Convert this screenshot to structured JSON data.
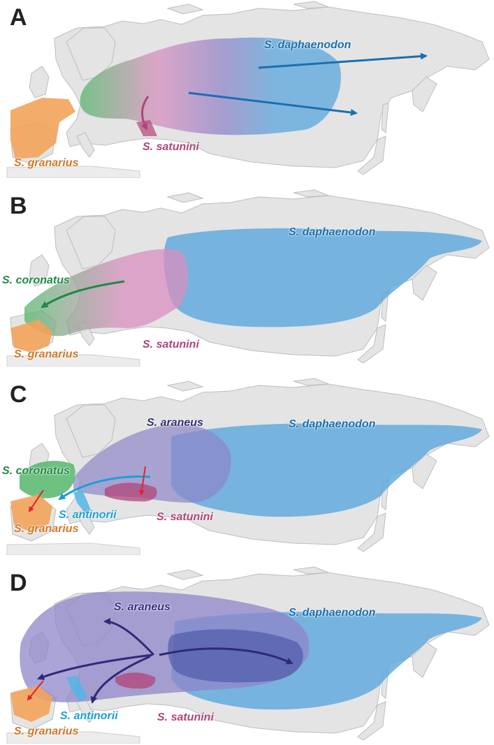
{
  "panels": [
    {
      "label": "A",
      "species": [
        {
          "name": "S. daphaenodon",
          "color": "#1a6fb0"
        },
        {
          "name": "S. satunini",
          "color": "#b2447a"
        },
        {
          "name": "S. granarius",
          "color": "#d07a2a"
        }
      ]
    },
    {
      "label": "B",
      "species": [
        {
          "name": "S. daphaenodon",
          "color": "#1a6fb0"
        },
        {
          "name": "S. coronatus",
          "color": "#1e8a46"
        },
        {
          "name": "S. satunini",
          "color": "#b2447a"
        },
        {
          "name": "S. granarius",
          "color": "#d07a2a"
        }
      ]
    },
    {
      "label": "C",
      "species": [
        {
          "name": "S. araneus",
          "color": "#34307a"
        },
        {
          "name": "S. daphaenodon",
          "color": "#1a6fb0"
        },
        {
          "name": "S. coronatus",
          "color": "#1e8a46"
        },
        {
          "name": "S. antinorii",
          "color": "#1aa0d8"
        },
        {
          "name": "S. satunini",
          "color": "#b2447a"
        },
        {
          "name": "S. granarius",
          "color": "#d07a2a"
        }
      ]
    },
    {
      "label": "D",
      "species": [
        {
          "name": "S. araneus",
          "color": "#34307a"
        },
        {
          "name": "S. daphaenodon",
          "color": "#1a6fb0"
        },
        {
          "name": "S. antinorii",
          "color": "#1aa0d8"
        },
        {
          "name": "S. satunini",
          "color": "#b2447a"
        },
        {
          "name": "S. granarius",
          "color": "#d07a2a"
        }
      ]
    }
  ],
  "colors": {
    "land": "#e4e4e4",
    "land_edge": "#bdbdbd",
    "daphaenodon_range": "#5aa6dc",
    "araneus_range": "#8f86c8",
    "satunini_range": "#d98fbf",
    "coronatus_range": "#55b66a",
    "granarius_range": "#f2a35a",
    "antinorii_range": "#52b6e6"
  }
}
